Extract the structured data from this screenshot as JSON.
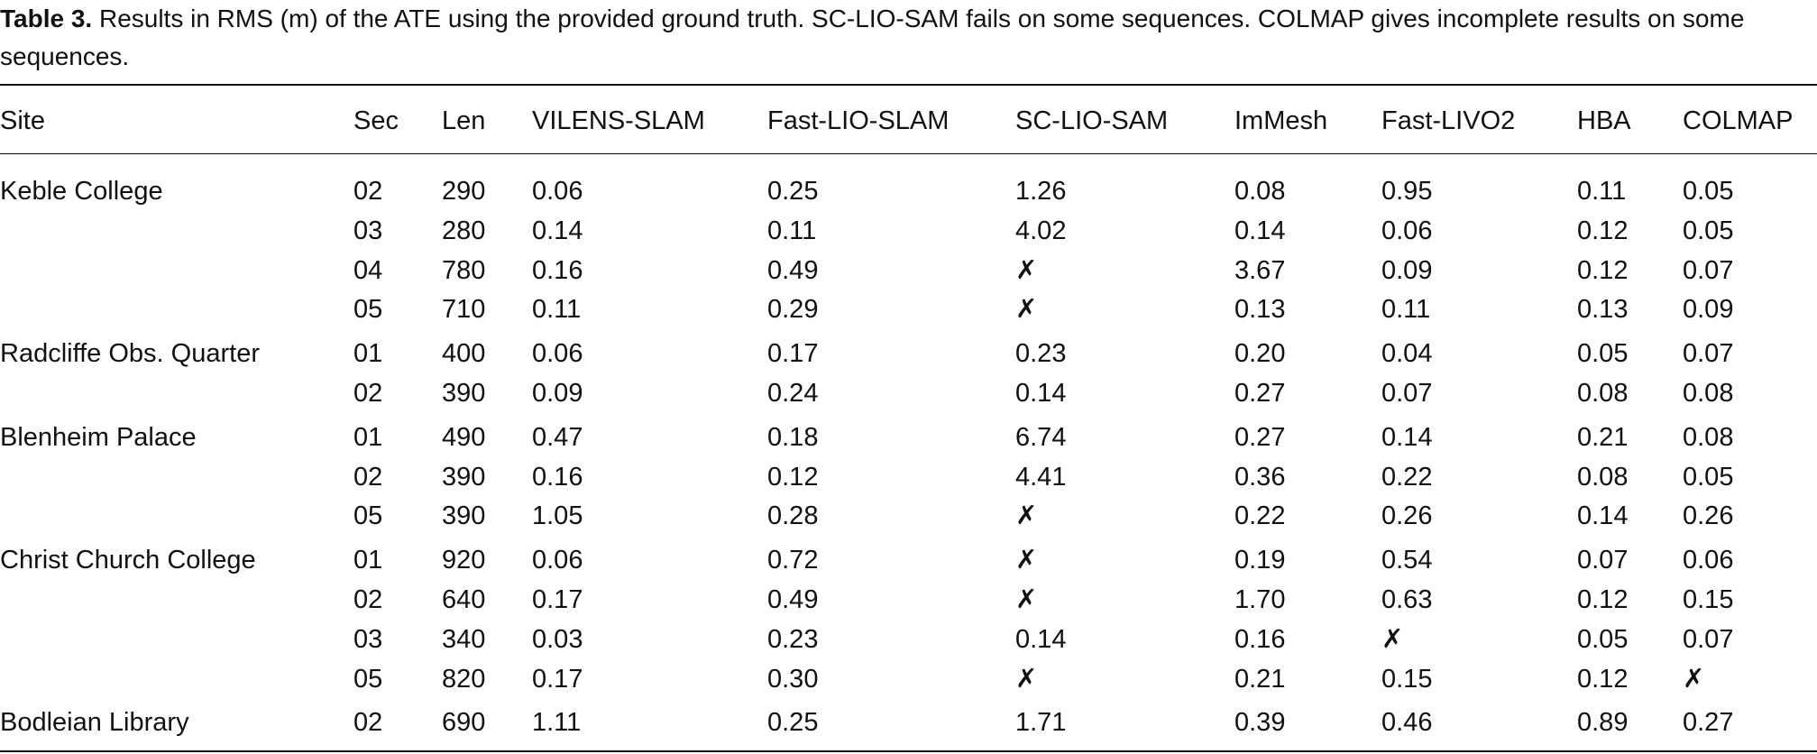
{
  "caption": {
    "label": "Table 3.",
    "text": "Results in RMS (m) of the ATE using the provided ground truth. SC-LIO-SAM fails on some sequences. COLMAP gives incomplete results on some sequences."
  },
  "table": {
    "header": [
      "Site",
      "Sec",
      "Len",
      "VILENS-SLAM",
      "Fast-LIO-SLAM",
      "SC-LIO-SAM",
      "ImMesh",
      "Fast-LIVO2",
      "HBA",
      "COLMAP"
    ],
    "groups": [
      {
        "site": "Keble College",
        "rows": [
          [
            "02",
            "290",
            "0.06",
            "0.25",
            "1.26",
            "0.08",
            "0.95",
            "0.11",
            "0.05"
          ],
          [
            "03",
            "280",
            "0.14",
            "0.11",
            "4.02",
            "0.14",
            "0.06",
            "0.12",
            "0.05"
          ],
          [
            "04",
            "780",
            "0.16",
            "0.49",
            "✗",
            "3.67",
            "0.09",
            "0.12",
            "0.07"
          ],
          [
            "05",
            "710",
            "0.11",
            "0.29",
            "✗",
            "0.13",
            "0.11",
            "0.13",
            "0.09"
          ]
        ]
      },
      {
        "site": "Radcliffe Obs. Quarter",
        "rows": [
          [
            "01",
            "400",
            "0.06",
            "0.17",
            "0.23",
            "0.20",
            "0.04",
            "0.05",
            "0.07"
          ],
          [
            "02",
            "390",
            "0.09",
            "0.24",
            "0.14",
            "0.27",
            "0.07",
            "0.08",
            "0.08"
          ]
        ]
      },
      {
        "site": "Blenheim Palace",
        "rows": [
          [
            "01",
            "490",
            "0.47",
            "0.18",
            "6.74",
            "0.27",
            "0.14",
            "0.21",
            "0.08"
          ],
          [
            "02",
            "390",
            "0.16",
            "0.12",
            "4.41",
            "0.36",
            "0.22",
            "0.08",
            "0.05"
          ],
          [
            "05",
            "390",
            "1.05",
            "0.28",
            "✗",
            "0.22",
            "0.26",
            "0.14",
            "0.26"
          ]
        ]
      },
      {
        "site": "Christ Church College",
        "rows": [
          [
            "01",
            "920",
            "0.06",
            "0.72",
            "✗",
            "0.19",
            "0.54",
            "0.07",
            "0.06"
          ],
          [
            "02",
            "640",
            "0.17",
            "0.49",
            "✗",
            "1.70",
            "0.63",
            "0.12",
            "0.15"
          ],
          [
            "03",
            "340",
            "0.03",
            "0.23",
            "0.14",
            "0.16",
            "✗",
            "0.05",
            "0.07"
          ],
          [
            "05",
            "820",
            "0.17",
            "0.30",
            "✗",
            "0.21",
            "0.15",
            "0.12",
            "✗"
          ]
        ]
      },
      {
        "site": "Bodleian Library",
        "rows": [
          [
            "02",
            "690",
            "1.11",
            "0.25",
            "1.71",
            "0.39",
            "0.46",
            "0.89",
            "0.27"
          ]
        ]
      }
    ]
  }
}
